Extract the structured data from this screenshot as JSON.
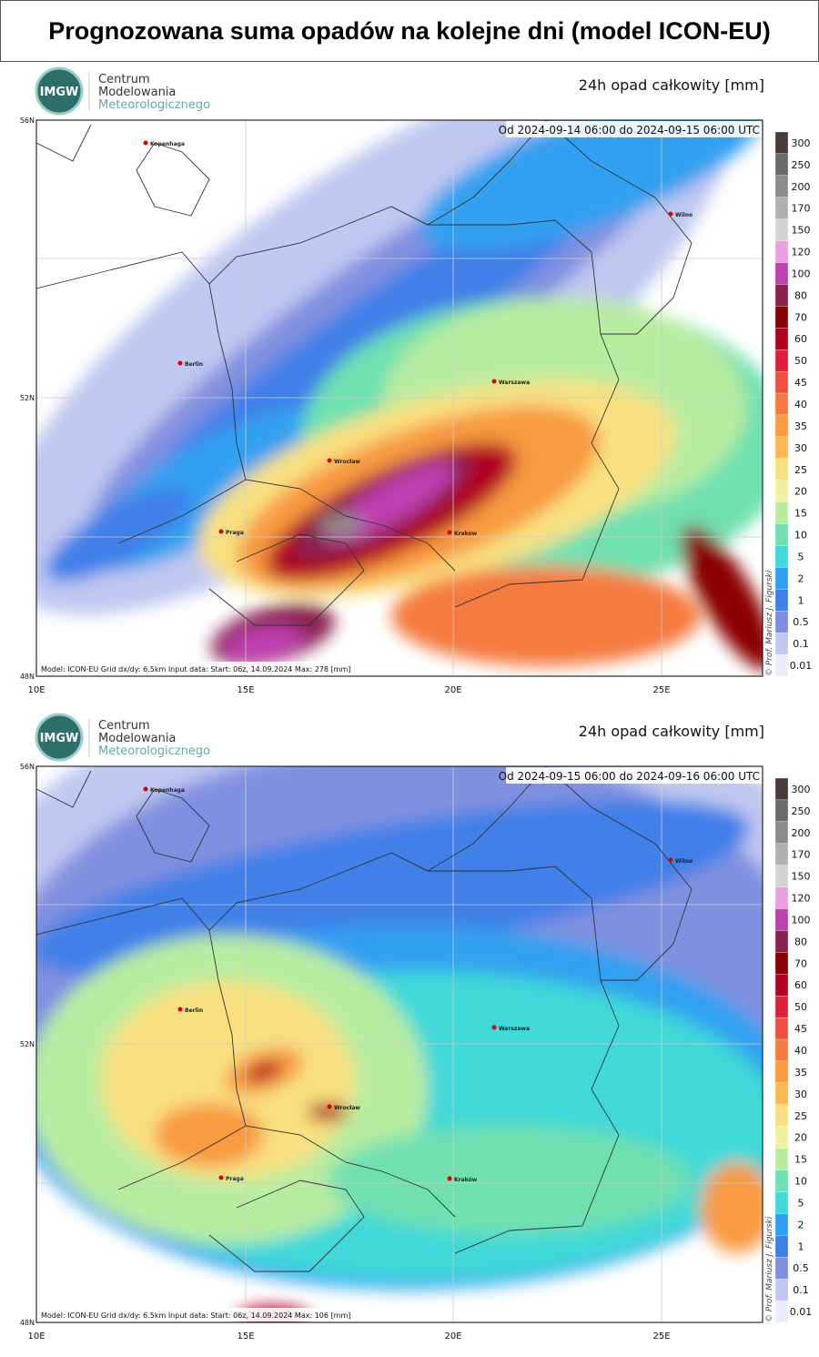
{
  "title": "Prognozowana suma opadów na kolejne dni (model ICON-EU)",
  "logo": {
    "badge": "IMGW",
    "line1": "Centrum",
    "line2": "Modelowania",
    "line3": "Meteorologicznego"
  },
  "axes": {
    "lat": [
      "56N",
      "52N",
      "48N"
    ],
    "lon": [
      "10E",
      "15E",
      "20E",
      "25E"
    ]
  },
  "cities": [
    "Kopenhaga",
    "Berlin",
    "Wilno",
    "Warszawa",
    "Wrocław",
    "Praga",
    "Kraków"
  ],
  "legend": {
    "labels": [
      "300",
      "250",
      "200",
      "170",
      "150",
      "120",
      "100",
      "80",
      "70",
      "60",
      "50",
      "45",
      "40",
      "35",
      "30",
      "25",
      "20",
      "15",
      "10",
      "5",
      "2",
      "1",
      "0.5",
      "0.1",
      "0.01"
    ],
    "colors": [
      "#4a3a38",
      "#6a6a6a",
      "#8c8c8c",
      "#b0b0b0",
      "#d4d4d4",
      "#e8a0e0",
      "#c040b0",
      "#8a2050",
      "#8b0000",
      "#b00020",
      "#e0203a",
      "#f05040",
      "#f57a40",
      "#f89a40",
      "#f8b850",
      "#f8e080",
      "#f0f0a0",
      "#b8eca0",
      "#70e0b0",
      "#40d8d8",
      "#30a0f0",
      "#4080e8",
      "#8090e0",
      "#c0c8f0",
      "#e8ecf8"
    ]
  },
  "credit": "© Prof. Mariusz J. Figurski",
  "panels": [
    {
      "product": "24h opad całkowity [mm]",
      "period": "Od 2024-09-14 06:00 do 2024-09-15 06:00 UTC",
      "footer": "Model: ICON-EU  Grid dx/dy: 6.5km  Input data: Start: 06z, 14.09.2024  Max: 278 [mm]"
    },
    {
      "product": "24h opad całkowity [mm]",
      "period": "Od 2024-09-15 06:00 do 2024-09-16 06:00 UTC",
      "footer": "Model: ICON-EU  Grid dx/dy: 6.5km  Input data: Start: 06z, 14.09.2024  Max: 106 [mm]"
    }
  ]
}
